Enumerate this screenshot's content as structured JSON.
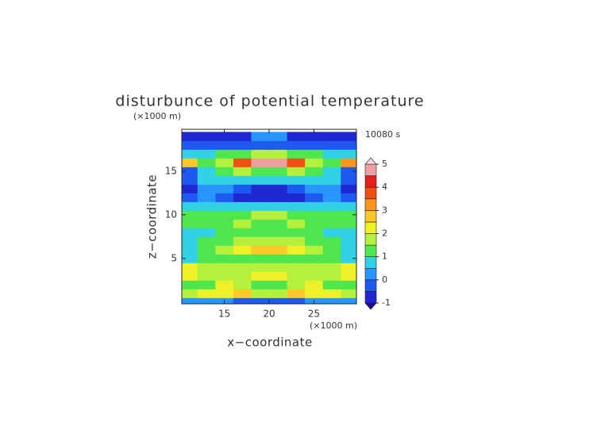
{
  "chart_data": {
    "type": "contour",
    "title": "disturbunce of potential temperature",
    "y_unit": "(×1000 m)",
    "x_unit": "(×1000 m)",
    "annotation": "10080 s",
    "xlabel": "x−coordinate",
    "ylabel": "z−coordinate",
    "xlim": [
      10.25,
      29.75
    ],
    "ylim": [
      -0.2,
      19.8
    ],
    "xticks": [
      15,
      20,
      25
    ],
    "yticks": [
      5,
      10,
      15
    ],
    "x": [
      11,
      13,
      15,
      17,
      19,
      21,
      23,
      25,
      27,
      29
    ],
    "y": [
      0,
      1,
      2,
      3,
      4,
      5,
      6,
      7,
      8,
      9,
      10,
      11,
      12,
      13,
      14,
      15,
      16,
      17,
      18,
      19
    ],
    "z": [
      [
        0.3,
        0.2,
        0.0,
        -0.2,
        -0.4,
        -0.4,
        -0.2,
        0.0,
        0.2,
        0.3
      ],
      [
        1.6,
        2.1,
        2.3,
        2.6,
        1.6,
        1.6,
        2.6,
        2.3,
        2.1,
        1.6
      ],
      [
        1.2,
        1.4,
        2.1,
        1.8,
        1.3,
        1.3,
        1.8,
        2.1,
        1.4,
        1.2
      ],
      [
        2.1,
        1.8,
        1.6,
        1.7,
        2.0,
        2.0,
        1.7,
        1.6,
        1.8,
        2.1
      ],
      [
        2.2,
        1.7,
        1.5,
        1.8,
        1.6,
        1.6,
        1.8,
        1.5,
        1.7,
        2.2
      ],
      [
        0.8,
        1.1,
        1.3,
        1.2,
        1.4,
        1.4,
        1.2,
        1.3,
        1.1,
        0.8
      ],
      [
        0.9,
        1.2,
        1.6,
        2.0,
        2.6,
        2.6,
        2.0,
        1.6,
        1.2,
        0.9
      ],
      [
        0.6,
        1.1,
        1.4,
        1.7,
        1.9,
        1.9,
        1.7,
        1.4,
        1.1,
        0.6
      ],
      [
        0.7,
        0.9,
        1.1,
        1.2,
        1.0,
        1.0,
        1.2,
        1.1,
        0.9,
        0.7
      ],
      [
        1.1,
        1.3,
        1.4,
        1.6,
        1.3,
        1.3,
        1.6,
        1.4,
        1.3,
        1.1
      ],
      [
        1.0,
        1.2,
        1.3,
        1.2,
        1.6,
        1.6,
        1.2,
        1.3,
        1.2,
        1.0
      ],
      [
        0.6,
        0.8,
        0.6,
        0.5,
        0.7,
        0.7,
        0.5,
        0.6,
        0.8,
        0.6
      ],
      [
        -0.2,
        0.2,
        -0.4,
        -0.8,
        -0.9,
        -0.9,
        -0.8,
        -0.4,
        0.2,
        -0.2
      ],
      [
        -0.6,
        0.3,
        0.1,
        -0.4,
        -0.6,
        -0.6,
        -0.4,
        0.1,
        0.3,
        -0.6
      ],
      [
        -0.3,
        0.6,
        0.9,
        0.8,
        0.7,
        0.7,
        0.8,
        0.9,
        0.6,
        -0.3
      ],
      [
        -0.4,
        0.7,
        1.2,
        1.6,
        1.4,
        1.4,
        1.6,
        1.2,
        0.7,
        -0.4
      ],
      [
        2.6,
        1.2,
        1.8,
        3.6,
        4.6,
        4.6,
        3.6,
        1.8,
        1.2,
        3.2
      ],
      [
        0.6,
        0.8,
        1.1,
        1.3,
        1.6,
        1.6,
        1.3,
        1.1,
        0.8,
        0.6
      ],
      [
        -0.4,
        -0.3,
        -0.2,
        -0.2,
        -0.1,
        -0.1,
        -0.2,
        -0.2,
        -0.3,
        -0.4
      ],
      [
        -0.9,
        -0.9,
        -0.9,
        -0.9,
        0.2,
        0.2,
        -0.9,
        -0.9,
        -0.9,
        -0.9
      ]
    ],
    "levels": [
      -1,
      -0.5,
      0,
      0.5,
      1,
      1.5,
      2,
      2.5,
      3,
      3.5,
      4,
      4.5,
      5
    ],
    "colors": [
      "#1a0a96",
      "#1e28d2",
      "#1e5af0",
      "#2896ff",
      "#32d2e6",
      "#50e650",
      "#b4f03c",
      "#f0f028",
      "#fac828",
      "#fa9619",
      "#f05014",
      "#e61e1e",
      "#f0a0a0",
      "#f5dcdc"
    ],
    "colorbar_ticks": [
      -1,
      0,
      1,
      2,
      3,
      4,
      5
    ]
  }
}
